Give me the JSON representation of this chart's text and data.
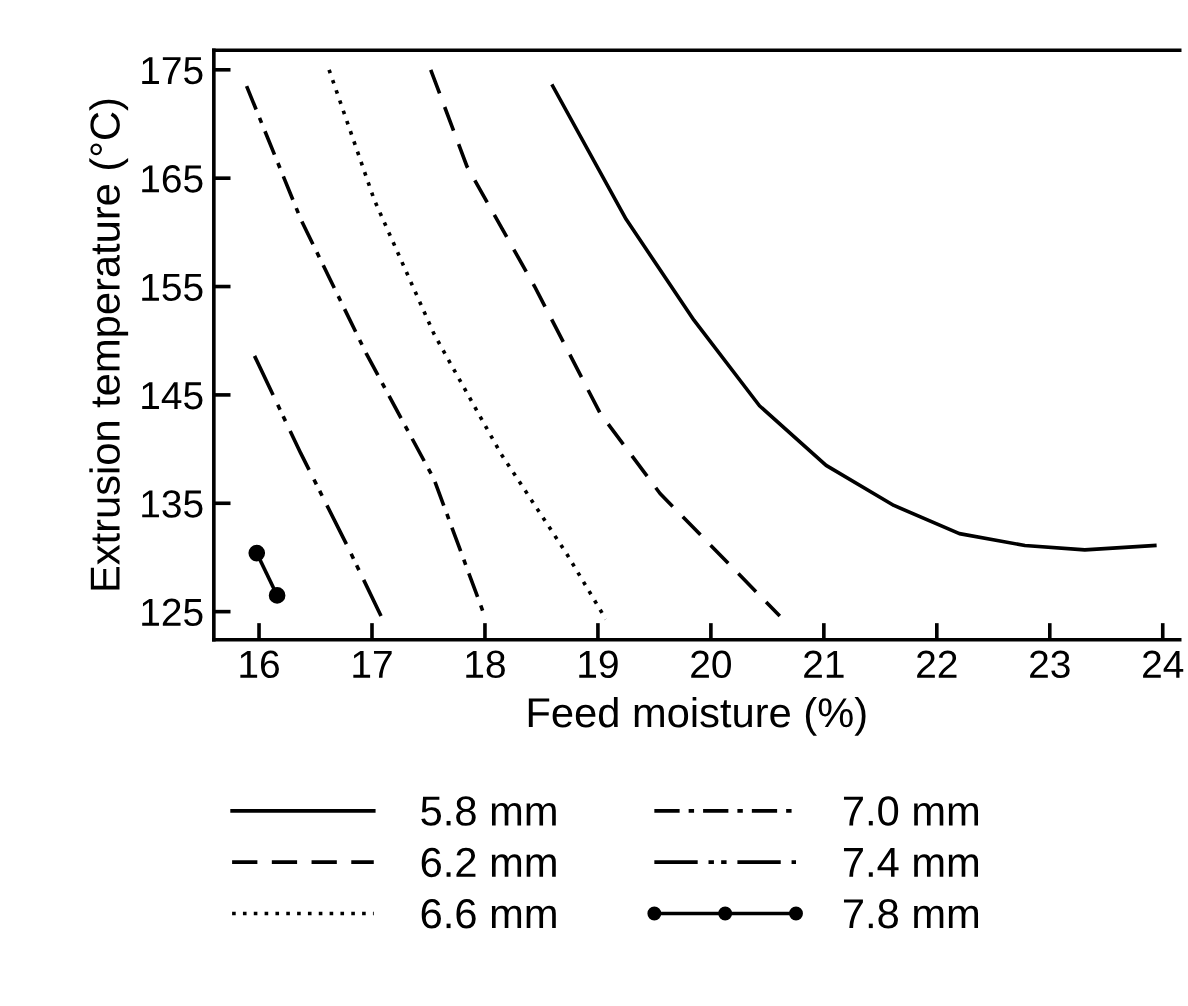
{
  "chart_data": {
    "type": "line",
    "xlabel": "Feed moisture (%)",
    "ylabel": "Extrusion temperature (°C)",
    "xlim": [
      15.6,
      24.15
    ],
    "ylim": [
      122.4,
      176.8
    ],
    "xticks": [
      16,
      17,
      18,
      19,
      20,
      21,
      22,
      23,
      24
    ],
    "yticks": [
      125,
      135,
      145,
      155,
      165,
      175
    ],
    "grid": false,
    "legend": "bottom",
    "series": [
      {
        "name": "5.8 mm",
        "color": "#000000",
        "line_style": "solid",
        "x": [
          18.6,
          19.25,
          19.85,
          20.43,
          21.02,
          21.62,
          22.2,
          22.78,
          23.31,
          23.93
        ],
        "values": [
          173.5,
          161.2,
          151.9,
          144.0,
          138.5,
          134.8,
          132.2,
          131.1,
          130.7,
          131.1
        ]
      },
      {
        "name": "6.2 mm",
        "color": "#000000",
        "line_style": "dashed",
        "x": [
          17.52,
          17.84,
          18.44,
          19.02,
          19.55,
          20.61
        ],
        "values": [
          175,
          166.1,
          155,
          143.3,
          135.9,
          124.6
        ]
      },
      {
        "name": "6.6 mm",
        "color": "#000000",
        "line_style": "dotted",
        "x": [
          16.62,
          17.02,
          17.55,
          18.14,
          18.72,
          19.07
        ],
        "values": [
          175,
          163.0,
          150.6,
          139.6,
          130.4,
          124.3
        ]
      },
      {
        "name": "7.0 mm",
        "color": "#000000",
        "line_style": "dashdot",
        "x": [
          15.89,
          16.37,
          16.95,
          17.55,
          17.99
        ],
        "values": [
          173.5,
          161.2,
          148.8,
          137.2,
          124.8
        ]
      },
      {
        "name": "7.4 mm",
        "color": "#000000",
        "line_style": "dashdotdot",
        "x": [
          15.96,
          16.37,
          16.78,
          17.08
        ],
        "values": [
          148.6,
          139.6,
          131.1,
          124.6
        ]
      },
      {
        "name": "7.8 mm",
        "color": "#000000",
        "line_style": "solid",
        "marker": "circle",
        "x": [
          15.98,
          16.16
        ],
        "values": [
          130.4,
          126.5
        ]
      }
    ]
  }
}
